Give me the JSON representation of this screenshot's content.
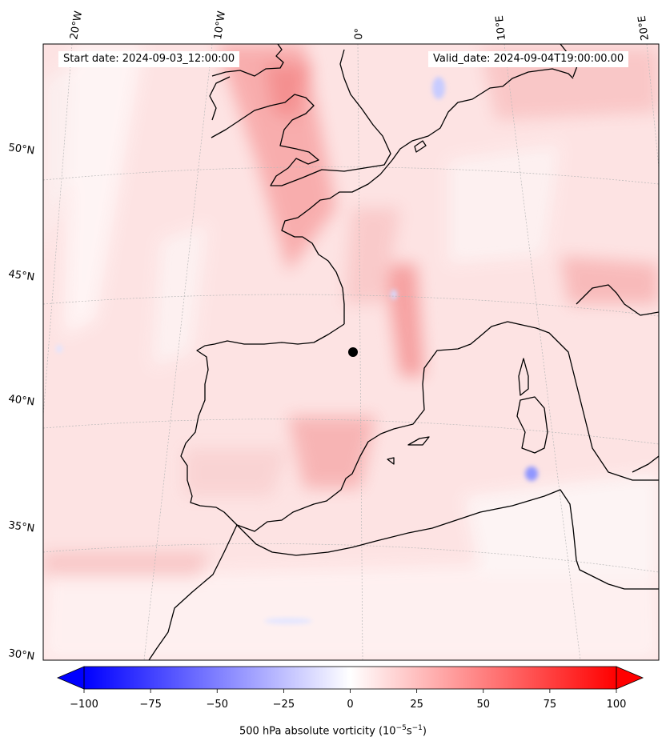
{
  "start_date": "Start date: 2024-09-03_12:00:00",
  "valid_date": "Valid_date: 2024-09-04T19:00:00.00",
  "colorbar": {
    "title": "500 hPa absolute vorticity",
    "unit_base": "10",
    "unit_exp1": "−5",
    "unit_s": "s",
    "unit_exp2": "−1",
    "ticks": [
      "−100",
      "−75",
      "−50",
      "−25",
      "0",
      "25",
      "50",
      "75",
      "100"
    ],
    "range": [
      -100,
      100
    ],
    "cmap": "bwr",
    "extend": "both"
  },
  "longitude_labels": [
    "20°W",
    "10°W",
    "0°",
    "10°E",
    "20°E"
  ],
  "latitude_labels": [
    "50°N",
    "45°N",
    "40°N",
    "35°N",
    "30°N"
  ],
  "colors": {
    "negative": "#0000ff",
    "positive": "#ff0000",
    "coastline": "#000000"
  }
}
